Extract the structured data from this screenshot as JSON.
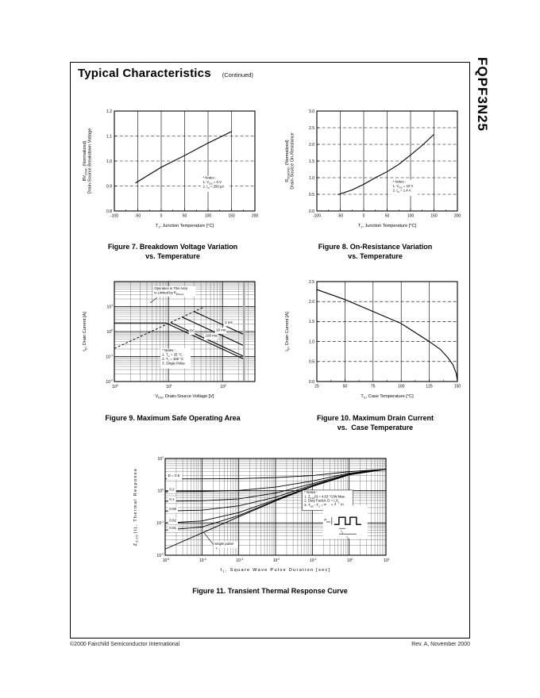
{
  "page": {
    "title": "Typical Characteristics",
    "subtitle": "(Continued)",
    "part_number": "FQPF3N25",
    "footer_left": "©2000 Fairchild Semiconductor International",
    "footer_right": "Rev. A, November 2000"
  },
  "figures": [
    {
      "caption_line1": "Figure 7. Breakdown Voltage Variation",
      "caption_line2": "vs. Temperature"
    },
    {
      "caption_line1": "Figure 8. On-Resistance Variation",
      "caption_line2": "vs. Temperature"
    },
    {
      "caption_line1": "Figure 9. Maximum Safe Operating Area",
      "caption_line2": ""
    },
    {
      "caption_line1": "Figure 10. Maximum Drain Current",
      "caption_line2": "vs.  Case Temperature"
    },
    {
      "caption_line1": "Figure 11. Transient Thermal Response Curve",
      "caption_line2": ""
    }
  ],
  "chart_data": [
    {
      "id": "fig7",
      "type": "line",
      "scale": "linear",
      "title": "Figure 7. Breakdown Voltage Variation vs. Temperature",
      "xlabel": "T~J~, Junction Temperature [°C]",
      "ylabel": [
        "BV~DSS~, (Normalized)",
        "Drain-Source Breakdown Voltage"
      ],
      "xlim": [
        -100,
        200
      ],
      "ylim": [
        0.8,
        1.2
      ],
      "xticks": [
        -100,
        -50,
        0,
        50,
        100,
        150,
        200
      ],
      "xtick_labels": [
        "-100",
        "-50",
        "0",
        "50",
        "100",
        "150",
        "200"
      ],
      "yticks": [
        0.8,
        0.9,
        1.0,
        1.1,
        1.2
      ],
      "ytick_labels": [
        "0.8",
        "0.9",
        "1.0",
        "1.1",
        "1.2"
      ],
      "series": [
        {
          "name": "BVDSS normalized",
          "points": [
            [
              -55,
              0.912
            ],
            [
              0,
              0.975
            ],
            [
              50,
              1.022
            ],
            [
              100,
              1.072
            ],
            [
              150,
              1.118
            ]
          ]
        }
      ],
      "notes": {
        "fx": 0.63,
        "fy": 0.68,
        "lines": [
          "* Notes :",
          "1. V~GS~ = 0 V",
          "2. I~D~ = 250 µA"
        ]
      }
    },
    {
      "id": "fig8",
      "type": "line",
      "scale": "linear",
      "title": "Figure 8. On-Resistance Variation vs. Temperature",
      "xlabel": "T~J~, Junction Temperature [°C]",
      "ylabel": [
        "R~DS(ON)~, (Normalized)",
        "Drain-Source On-Resistance"
      ],
      "xlim": [
        -100,
        200
      ],
      "ylim": [
        0.0,
        3.0
      ],
      "xticks": [
        -100,
        -50,
        0,
        50,
        100,
        150,
        200
      ],
      "xtick_labels": [
        "-100",
        "-50",
        "0",
        "50",
        "100",
        "150",
        "200"
      ],
      "yticks": [
        0.0,
        0.5,
        1.0,
        1.5,
        2.0,
        2.5,
        3.0
      ],
      "ytick_labels": [
        "0.0",
        "0.5",
        "1.0",
        "1.5",
        "2.0",
        "2.5",
        "3.0"
      ],
      "series": [
        {
          "name": "RDS(on) normalized",
          "points": [
            [
              -55,
              0.49
            ],
            [
              -25,
              0.63
            ],
            [
              0,
              0.8
            ],
            [
              25,
              1.0
            ],
            [
              50,
              1.18
            ],
            [
              75,
              1.4
            ],
            [
              100,
              1.68
            ],
            [
              125,
              1.97
            ],
            [
              150,
              2.3
            ]
          ]
        }
      ],
      "notes": {
        "fx": 0.54,
        "fy": 0.72,
        "lines": [
          "* Notes :",
          "1. V~GS~ = 10 V",
          "2. I~D~ = 1.4 A"
        ]
      }
    },
    {
      "id": "fig9",
      "type": "line",
      "scale": "loglog",
      "title": "Figure 9. Maximum Safe Operating Area",
      "xlabel": "V~DS~, Drain-Source Voltage [V]",
      "ylabel": [
        "I~D~, Drain Current [A]"
      ],
      "xdec": [
        0,
        2.6
      ],
      "ydec": [
        -2,
        2
      ],
      "xlabeled": [
        0,
        1,
        2
      ],
      "ylabeled": [
        -2,
        -1,
        0,
        1
      ],
      "series": [
        {
          "name": "Limited by RDS(on)",
          "points": [
            [
              1,
              0.21
            ],
            [
              45,
              9.5
            ]
          ],
          "dash": "3 2.2",
          "width": 0.9
        },
        {
          "name": "1 ms",
          "points": [
            [
              30,
              6.3
            ],
            [
              250,
              0.76
            ]
          ]
        },
        {
          "name": "10 ms",
          "points": [
            [
              18,
              3.8
            ],
            [
              250,
              0.27
            ]
          ]
        },
        {
          "name": "100 ms",
          "points": [
            [
              11,
              2.3
            ],
            [
              250,
              0.1
            ]
          ]
        },
        {
          "name": "DC",
          "points": [
            [
              1,
              2.2
            ],
            [
              9,
              2.2
            ],
            [
              250,
              0.079
            ]
          ]
        },
        {
          "name": "BVDSS limit 250 V",
          "points": [
            [
              250,
              0.011
            ],
            [
              250,
              95
            ]
          ],
          "color": "#a9a9a9",
          "width": 2.6
        }
      ],
      "annotations": [
        {
          "x": 5.5,
          "y": 48,
          "lines": [
            "Operation in This Area",
            "is Limited by R~DS(on)~"
          ],
          "size": 4.2,
          "bg": true,
          "arrow": [
            4.6,
            14
          ]
        },
        {
          "x": 110,
          "y": 2.1,
          "lines": [
            "1 ms"
          ],
          "bg": true
        },
        {
          "x": 76,
          "y": 1.05,
          "lines": [
            "10 ms"
          ],
          "bg": true
        },
        {
          "x": 48,
          "y": 0.62,
          "lines": [
            "100 ms"
          ],
          "bg": true
        },
        {
          "x": 25,
          "y": 0.95,
          "lines": [
            "DC"
          ],
          "bg": true
        }
      ],
      "notes": {
        "fx": 0.34,
        "fy": 0.7,
        "lines": [
          "* Notes :",
          "1. T~C~ = 25 °C",
          "2. T~J~ = 150 °C",
          "3. Single Pulse"
        ]
      }
    },
    {
      "id": "fig10",
      "type": "line",
      "scale": "linear",
      "title": "Figure 10. Maximum Drain Current vs. Case Temperature",
      "xlabel": "T~C~, Case Temperature [°C]",
      "ylabel": [
        "I~D~, Drain Current [A]"
      ],
      "xlim": [
        25,
        150
      ],
      "ylim": [
        0.0,
        2.5
      ],
      "xticks": [
        25,
        50,
        75,
        100,
        125,
        150
      ],
      "xtick_labels": [
        "25",
        "50",
        "75",
        "100",
        "125",
        "150"
      ],
      "yticks": [
        0.0,
        0.5,
        1.0,
        1.5,
        2.0,
        2.5
      ],
      "ytick_labels": [
        "0.0",
        "0.5",
        "1.0",
        "1.5",
        "2.0",
        "2.5"
      ],
      "series": [
        {
          "name": "ID max",
          "points": [
            [
              25,
              2.3
            ],
            [
              50,
              2.05
            ],
            [
              75,
              1.75
            ],
            [
              100,
              1.45
            ],
            [
              125,
              1.0
            ],
            [
              135,
              0.8
            ],
            [
              142,
              0.58
            ],
            [
              146,
              0.42
            ],
            [
              149,
              0.2
            ],
            [
              150,
              0.02
            ]
          ]
        }
      ]
    },
    {
      "id": "fig11",
      "type": "line",
      "scale": "loglog",
      "title": "Figure 11. Transient Thermal Response Curve",
      "xlabel": "t~1~, Square Wave Pulse Duration [sec]",
      "ylabel": [
        "Z~θJC~(t), Thermal Response"
      ],
      "label_spacing": 1.3,
      "xdec": [
        -5,
        1
      ],
      "ydec": [
        -2,
        1
      ],
      "xlabeled": [
        -5,
        -4,
        -3,
        -2,
        -1,
        0,
        1
      ],
      "ylabeled": [
        -2,
        -1,
        0,
        1
      ],
      "series": [
        {
          "name": "D = 0.5",
          "points": [
            [
              1e-05,
              2.32
            ],
            [
              0.0001,
              2.33
            ],
            [
              0.001,
              2.37
            ],
            [
              0.01,
              2.55
            ],
            [
              0.1,
              2.95
            ],
            [
              1,
              3.9
            ],
            [
              10,
              4.62
            ]
          ],
          "width": 0.9
        },
        {
          "name": "D = 0.2",
          "points": [
            [
              1e-05,
              0.93
            ],
            [
              0.0001,
              0.95
            ],
            [
              0.001,
              1.02
            ],
            [
              0.01,
              1.3
            ],
            [
              0.1,
              2.0
            ],
            [
              1,
              3.5
            ],
            [
              10,
              4.6
            ]
          ],
          "width": 0.9
        },
        {
          "name": "D = 0.1",
          "points": [
            [
              1e-05,
              0.47
            ],
            [
              0.0001,
              0.49
            ],
            [
              0.001,
              0.56
            ],
            [
              0.01,
              0.85
            ],
            [
              0.1,
              1.65
            ],
            [
              1,
              3.3
            ],
            [
              10,
              4.6
            ]
          ],
          "width": 0.9
        },
        {
          "name": "D = 0.05",
          "points": [
            [
              1e-05,
              0.235
            ],
            [
              0.0001,
              0.25
            ],
            [
              0.001,
              0.34
            ],
            [
              0.01,
              0.63
            ],
            [
              0.1,
              1.5
            ],
            [
              1,
              3.2
            ],
            [
              10,
              4.6
            ]
          ],
          "width": 0.9
        },
        {
          "name": "D = 0.02",
          "points": [
            [
              1e-05,
              0.1
            ],
            [
              0.0001,
              0.115
            ],
            [
              0.001,
              0.21
            ],
            [
              0.01,
              0.53
            ],
            [
              0.1,
              1.4
            ],
            [
              1,
              3.15
            ],
            [
              10,
              4.6
            ]
          ],
          "width": 0.9
        },
        {
          "name": "D = 0.01",
          "points": [
            [
              1e-05,
              0.06
            ],
            [
              0.0001,
              0.075
            ],
            [
              0.001,
              0.17
            ],
            [
              0.01,
              0.5
            ],
            [
              0.1,
              1.37
            ],
            [
              1,
              3.1
            ],
            [
              10,
              4.6
            ]
          ],
          "width": 0.9
        },
        {
          "name": "single pulse",
          "points": [
            [
              1e-05,
              0.0155
            ],
            [
              0.0001,
              0.049
            ],
            [
              0.001,
              0.155
            ],
            [
              0.01,
              0.48
            ],
            [
              0.1,
              1.35
            ],
            [
              1,
              3.1
            ],
            [
              3,
              4.2
            ],
            [
              10,
              4.6
            ]
          ],
          "width": 0.9
        }
      ],
      "annotations": [
        {
          "x": 1.2e-05,
          "y": 2.75,
          "lines": [
            "D = 0.5"
          ],
          "bg": true
        },
        {
          "x": 1.3e-05,
          "y": 1.0,
          "lines": [
            "0.2"
          ],
          "bg": true
        },
        {
          "x": 1.3e-05,
          "y": 0.5,
          "lines": [
            "0.1"
          ],
          "bg": true
        },
        {
          "x": 1.3e-05,
          "y": 0.25,
          "lines": [
            "0.05"
          ],
          "bg": true
        },
        {
          "x": 1.3e-05,
          "y": 0.112,
          "lines": [
            "0.02"
          ],
          "bg": true
        },
        {
          "x": 1.3e-05,
          "y": 0.064,
          "lines": [
            "0.01"
          ],
          "bg": true
        },
        {
          "x": 0.00022,
          "y": 0.021,
          "lines": [
            "single pulse"
          ],
          "bg": true,
          "arrow": [
            0.00011,
            0.052
          ]
        }
      ],
      "notes": {
        "fx": 0.63,
        "fy": 0.36,
        "boxed": true,
        "lines": [
          "* Notes :",
          "1. Z~θJC~(t) = 4.63 °C/W Max.",
          "2. Duty Factor, D = t~1~/t~2~",
          "3. T~JM~ - T~C~ = P~DM~ × Z~θJC~(t)"
        ]
      },
      "glyph": {
        "fx": 0.78,
        "fy": 0.6,
        "label": "P~DM~",
        "t1": "t~1~",
        "t2": "t~2~"
      }
    }
  ]
}
